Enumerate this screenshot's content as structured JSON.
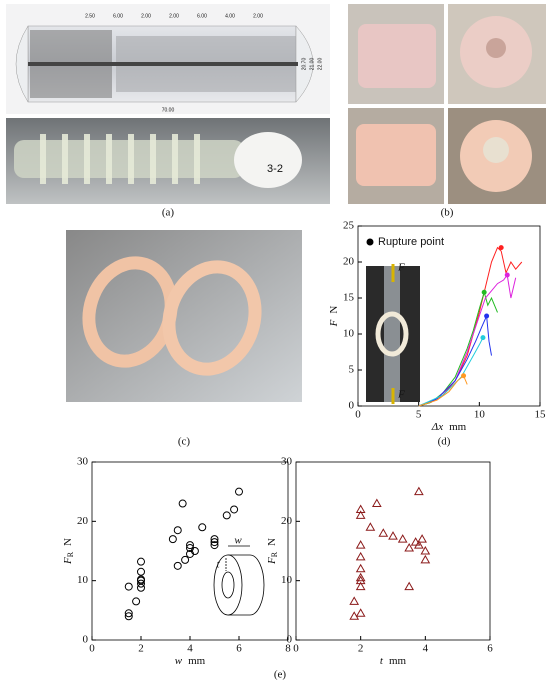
{
  "panels": {
    "a": {
      "label": "(a)",
      "dimensions_top": [
        "2.50",
        "6.00",
        "2.00",
        "2.00",
        "6.00",
        "4.00",
        "2.00"
      ],
      "dimensions_right": [
        "20.70",
        "21.00",
        "22.00"
      ],
      "dimension_bottom": "70.00",
      "sample_tag": "3-2"
    },
    "b": {
      "label": "(b)"
    },
    "c": {
      "label": "(c)"
    },
    "d": {
      "label": "(d)",
      "inset_labels": [
        "F",
        "F"
      ]
    },
    "e": {
      "label": "(e)",
      "inset_labels": [
        "w",
        "t"
      ]
    }
  },
  "chart_data": [
    {
      "type": "line",
      "x_label": "Δx",
      "x_unit": "mm",
      "y_label": "F",
      "y_unit": "N",
      "xlim": [
        0,
        15
      ],
      "xticks": [
        0,
        5,
        10,
        15
      ],
      "ylim": [
        0,
        25
      ],
      "yticks": [
        0,
        5,
        10,
        15,
        20,
        25
      ],
      "legend": "Rupture point",
      "legend_color": "#000000",
      "series": [
        {
          "color": "#ff2020",
          "x": [
            5,
            6,
            7,
            8,
            9,
            10,
            10.5,
            11,
            11.5,
            11.8,
            12.2,
            12.6,
            13,
            13.5
          ],
          "values": [
            0,
            0.5,
            1.5,
            3.5,
            7,
            13,
            16.5,
            20,
            22,
            21.5,
            18.5,
            20,
            19,
            20
          ],
          "rupture_x": 11.8,
          "rupture_y": 22
        },
        {
          "color": "#22bb22",
          "x": [
            5,
            6,
            7,
            8,
            9,
            9.5,
            10,
            10.4,
            10.7,
            11,
            11.5
          ],
          "values": [
            0,
            0.5,
            1.8,
            4,
            8,
            10.5,
            13.5,
            15.8,
            14,
            15,
            13
          ],
          "rupture_x": 10.4,
          "rupture_y": 15.8
        },
        {
          "color": "#dd22dd",
          "x": [
            5,
            6.5,
            8,
            9,
            10,
            10.5,
            11,
            11.5,
            12,
            12.3,
            12.6,
            13
          ],
          "values": [
            0,
            1,
            3.5,
            7.5,
            12.5,
            15,
            16,
            17,
            17.5,
            18.2,
            15,
            17.8
          ],
          "rupture_x": 12.3,
          "rupture_y": 18.2
        },
        {
          "color": "#2233ee",
          "x": [
            5,
            6.5,
            8,
            9,
            9.7,
            10.2,
            10.6,
            10.8,
            11
          ],
          "values": [
            0,
            1,
            3.5,
            6.5,
            9,
            11,
            12.5,
            9,
            7
          ],
          "rupture_x": 10.6,
          "rupture_y": 12.5
        },
        {
          "color": "#22ccdd",
          "x": [
            5,
            7,
            8.5,
            9.5,
            10,
            10.3
          ],
          "values": [
            0,
            1.5,
            4,
            7,
            8.5,
            9.5
          ],
          "rupture_x": 10.3,
          "rupture_y": 9.5
        },
        {
          "color": "#ff9922",
          "x": [
            5,
            6.5,
            7.5,
            8.2,
            8.7,
            9
          ],
          "values": [
            0,
            0.8,
            2,
            3.5,
            4.2,
            3
          ],
          "rupture_x": 8.7,
          "rupture_y": 4.2
        }
      ]
    },
    {
      "type": "scatter",
      "marker": "circle",
      "color": "#000000",
      "x_label": "w",
      "x_unit": "mm",
      "y_label": "F",
      "y_sub": "R",
      "y_unit": "N",
      "xlim": [
        0,
        8
      ],
      "xticks": [
        0,
        2,
        4,
        6,
        8
      ],
      "ylim": [
        0,
        30
      ],
      "yticks": [
        0,
        10,
        20,
        30
      ],
      "x": [
        1.5,
        1.5,
        1.5,
        1.8,
        2,
        2,
        2,
        2,
        2,
        2,
        3.3,
        3.5,
        3.5,
        3.7,
        3.8,
        4,
        4,
        4,
        4.2,
        4.5,
        5,
        5,
        5,
        5.5,
        6,
        5.8
      ],
      "values": [
        9,
        4.5,
        4,
        6.5,
        8.8,
        10,
        10.2,
        9.5,
        11.5,
        13.2,
        17,
        18.5,
        12.5,
        23,
        13.5,
        14.5,
        16,
        15.5,
        15,
        19,
        16.5,
        17,
        16,
        21,
        25,
        22
      ]
    },
    {
      "type": "scatter",
      "marker": "triangle",
      "color": "#8b1a1a",
      "x_label": "t",
      "x_unit": "mm",
      "y_label": "F",
      "y_sub": "R",
      "y_unit": "N",
      "xlim": [
        0,
        6
      ],
      "xticks": [
        0,
        2,
        4,
        6
      ],
      "ylim": [
        0,
        30
      ],
      "yticks": [
        0,
        10,
        20,
        30
      ],
      "x": [
        1.8,
        1.8,
        2,
        2,
        2,
        2,
        2,
        2,
        2,
        2,
        2,
        2.3,
        2.5,
        2.7,
        3,
        3.3,
        3.5,
        3.5,
        3.7,
        3.8,
        3.8,
        4,
        4,
        3.9
      ],
      "values": [
        6.5,
        4,
        22,
        21,
        16,
        14,
        12,
        10.5,
        10,
        9,
        4.5,
        19,
        23,
        18,
        17.5,
        17,
        9,
        15.5,
        16.5,
        25,
        16,
        15,
        13.5,
        17
      ]
    }
  ]
}
